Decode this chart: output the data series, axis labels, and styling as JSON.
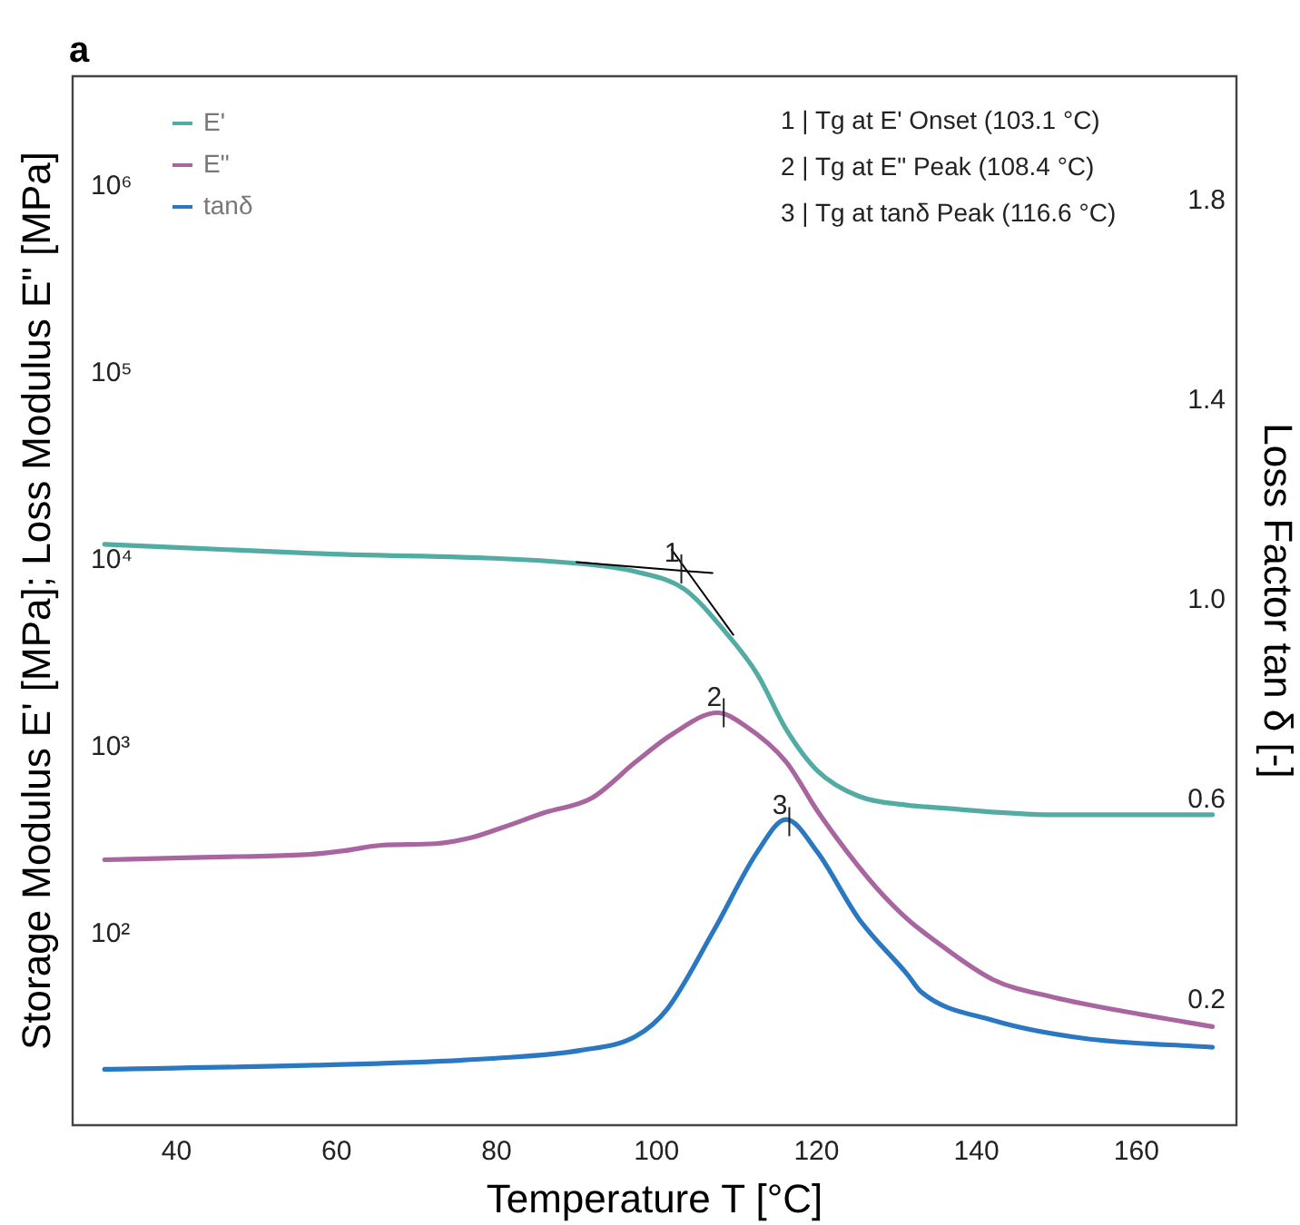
{
  "chart_data": {
    "type": "line",
    "title": "a",
    "xlabel": "Temperature T [°C]",
    "ylabel": "Storage Modulus E' [MPa]; Loss Modulus E\" [MPa]",
    "y2label": "Loss Factor tan δ [-]",
    "xlim": [
      27,
      172.5
    ],
    "xticks": [
      40,
      60,
      80,
      100,
      120,
      140,
      160
    ],
    "ylim": [
      9.5,
      3900000
    ],
    "yticks": [
      {
        "value": 100,
        "label": "10²"
      },
      {
        "value": 1000,
        "label": "10³"
      },
      {
        "value": 10000,
        "label": "10⁴"
      },
      {
        "value": 100000,
        "label": "10⁵"
      },
      {
        "value": 1000000,
        "label": "10⁶"
      }
    ],
    "y2lim": [
      -0.05,
      2.05
    ],
    "y2ticks": [
      0.2,
      0.6,
      {
        "value": 1.0,
        "label": "1.0"
      },
      1.4,
      1.8
    ],
    "log": "y",
    "grid": false,
    "legend": "top left",
    "marker": "none",
    "line_style": "solid",
    "series": [
      {
        "name": "E'",
        "color": "#52aca4",
        "x": [
          31,
          57.2,
          90.6,
          97.4,
          103.5,
          108.7,
          112.6,
          116.2,
          120.1,
          125.3,
          131.4,
          134.4,
          149.6,
          169.5
        ],
        "values": [
          12200,
          10900,
          9600,
          8700,
          7000,
          4090,
          2460,
          1250,
          750,
          547,
          490,
          478,
          436,
          436
        ]
      },
      {
        "name": "E\"",
        "color": "#a8659f",
        "x": [
          31,
          40.7,
          47.5,
          56.6,
          61.1,
          65.6,
          72.4,
          77,
          80.9,
          86,
          91.9,
          97.4,
          101.9,
          107.6,
          111,
          116.2,
          120.1,
          123.9,
          127.6,
          131.4,
          134.4,
          142.1,
          149.6,
          160.9,
          169.5
        ],
        "values": [
          250,
          256,
          260,
          267,
          280,
          299,
          305,
          330,
          374,
          447,
          535,
          836,
          1170,
          1530,
          1310,
          836,
          457,
          273,
          175,
          120,
          95,
          57,
          46,
          37,
          32
        ]
      },
      {
        "name": "tanδ",
        "color": "#2b78c2",
        "axis": "y2",
        "x": [
          31,
          57.2,
          79.9,
          90.6,
          97.4,
          101.3,
          107.2,
          112.6,
          116.2,
          120.1,
          125.3,
          131.4,
          133,
          142.1,
          153.4,
          169.5
        ],
        "values": [
          0.062,
          0.07,
          0.084,
          0.1,
          0.128,
          0.182,
          0.341,
          0.497,
          0.562,
          0.497,
          0.363,
          0.251,
          0.218,
          0.16,
          0.124,
          0.106
        ]
      },
      {
        "type": "line",
        "color": "#000000",
        "x": [
          90,
          107
        ],
        "values": [
          9800,
          8550
        ]
      },
      {
        "type": "line",
        "color": "#000000",
        "x": [
          101.9,
          109.6
        ],
        "values": [
          11400,
          4000
        ]
      }
    ],
    "annotations": [
      {
        "text": "1",
        "x": 103.1,
        "y": 9000
      },
      {
        "text": "2",
        "x": 108.4,
        "y": 1530
      },
      {
        "text": "3",
        "x": 116.6,
        "y": 400
      },
      "1 | Tg at E' Onset (103.1 °C)",
      "2 | Tg at E\" Peak (108.4 °C)",
      "3 | Tg at tanδ Peak (116.6 °C)"
    ]
  }
}
